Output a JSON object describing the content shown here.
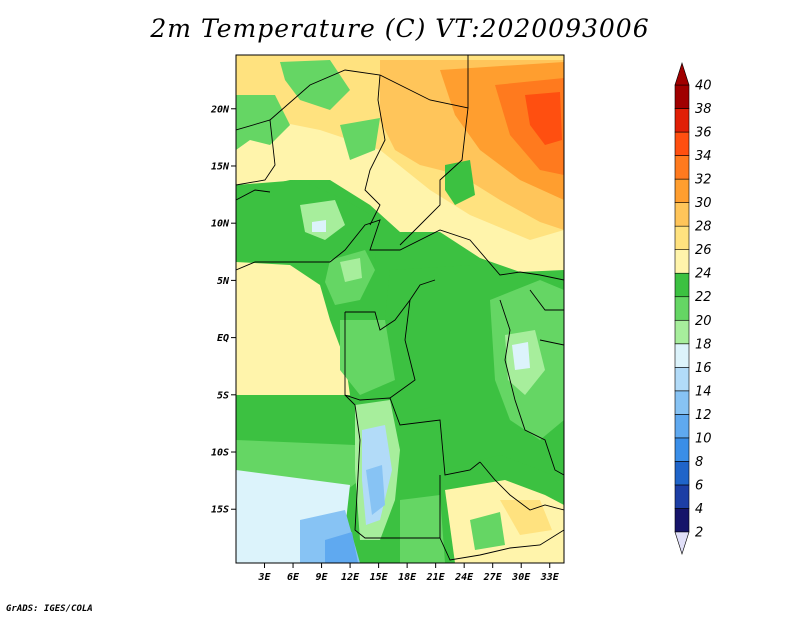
{
  "title": "2m Temperature (C) VT:2020093006",
  "credit": "GrADS: IGES/COLA",
  "map": {
    "lon_labels": [
      "3E",
      "6E",
      "9E",
      "12E",
      "15E",
      "18E",
      "21E",
      "24E",
      "27E",
      "30E",
      "33E"
    ],
    "lat_labels": [
      "20N",
      "15N",
      "10N",
      "5N",
      "EQ",
      "5S",
      "10S",
      "15S"
    ],
    "lon_range": [
      0,
      34.5
    ],
    "lat_range": [
      -19.7,
      24.7
    ]
  },
  "colorbar": {
    "levels": [
      2,
      4,
      6,
      8,
      10,
      12,
      14,
      16,
      18,
      20,
      22,
      24,
      26,
      28,
      30,
      32,
      34,
      36,
      38,
      40
    ],
    "colors": [
      "#16146a",
      "#1c3ea5",
      "#1f64c9",
      "#3a8ee8",
      "#5fa9f0",
      "#87c3f4",
      "#b2dbf8",
      "#dcf3fb",
      "#a7ee9c",
      "#65d664",
      "#3cc141",
      "#fff4ab",
      "#ffe27f",
      "#ffc55a",
      "#ff9e2f",
      "#ff7a1e",
      "#ff4f10",
      "#e01f06",
      "#a00000"
    ],
    "min_color": "#e0dff8",
    "max_color": "#a00000"
  }
}
